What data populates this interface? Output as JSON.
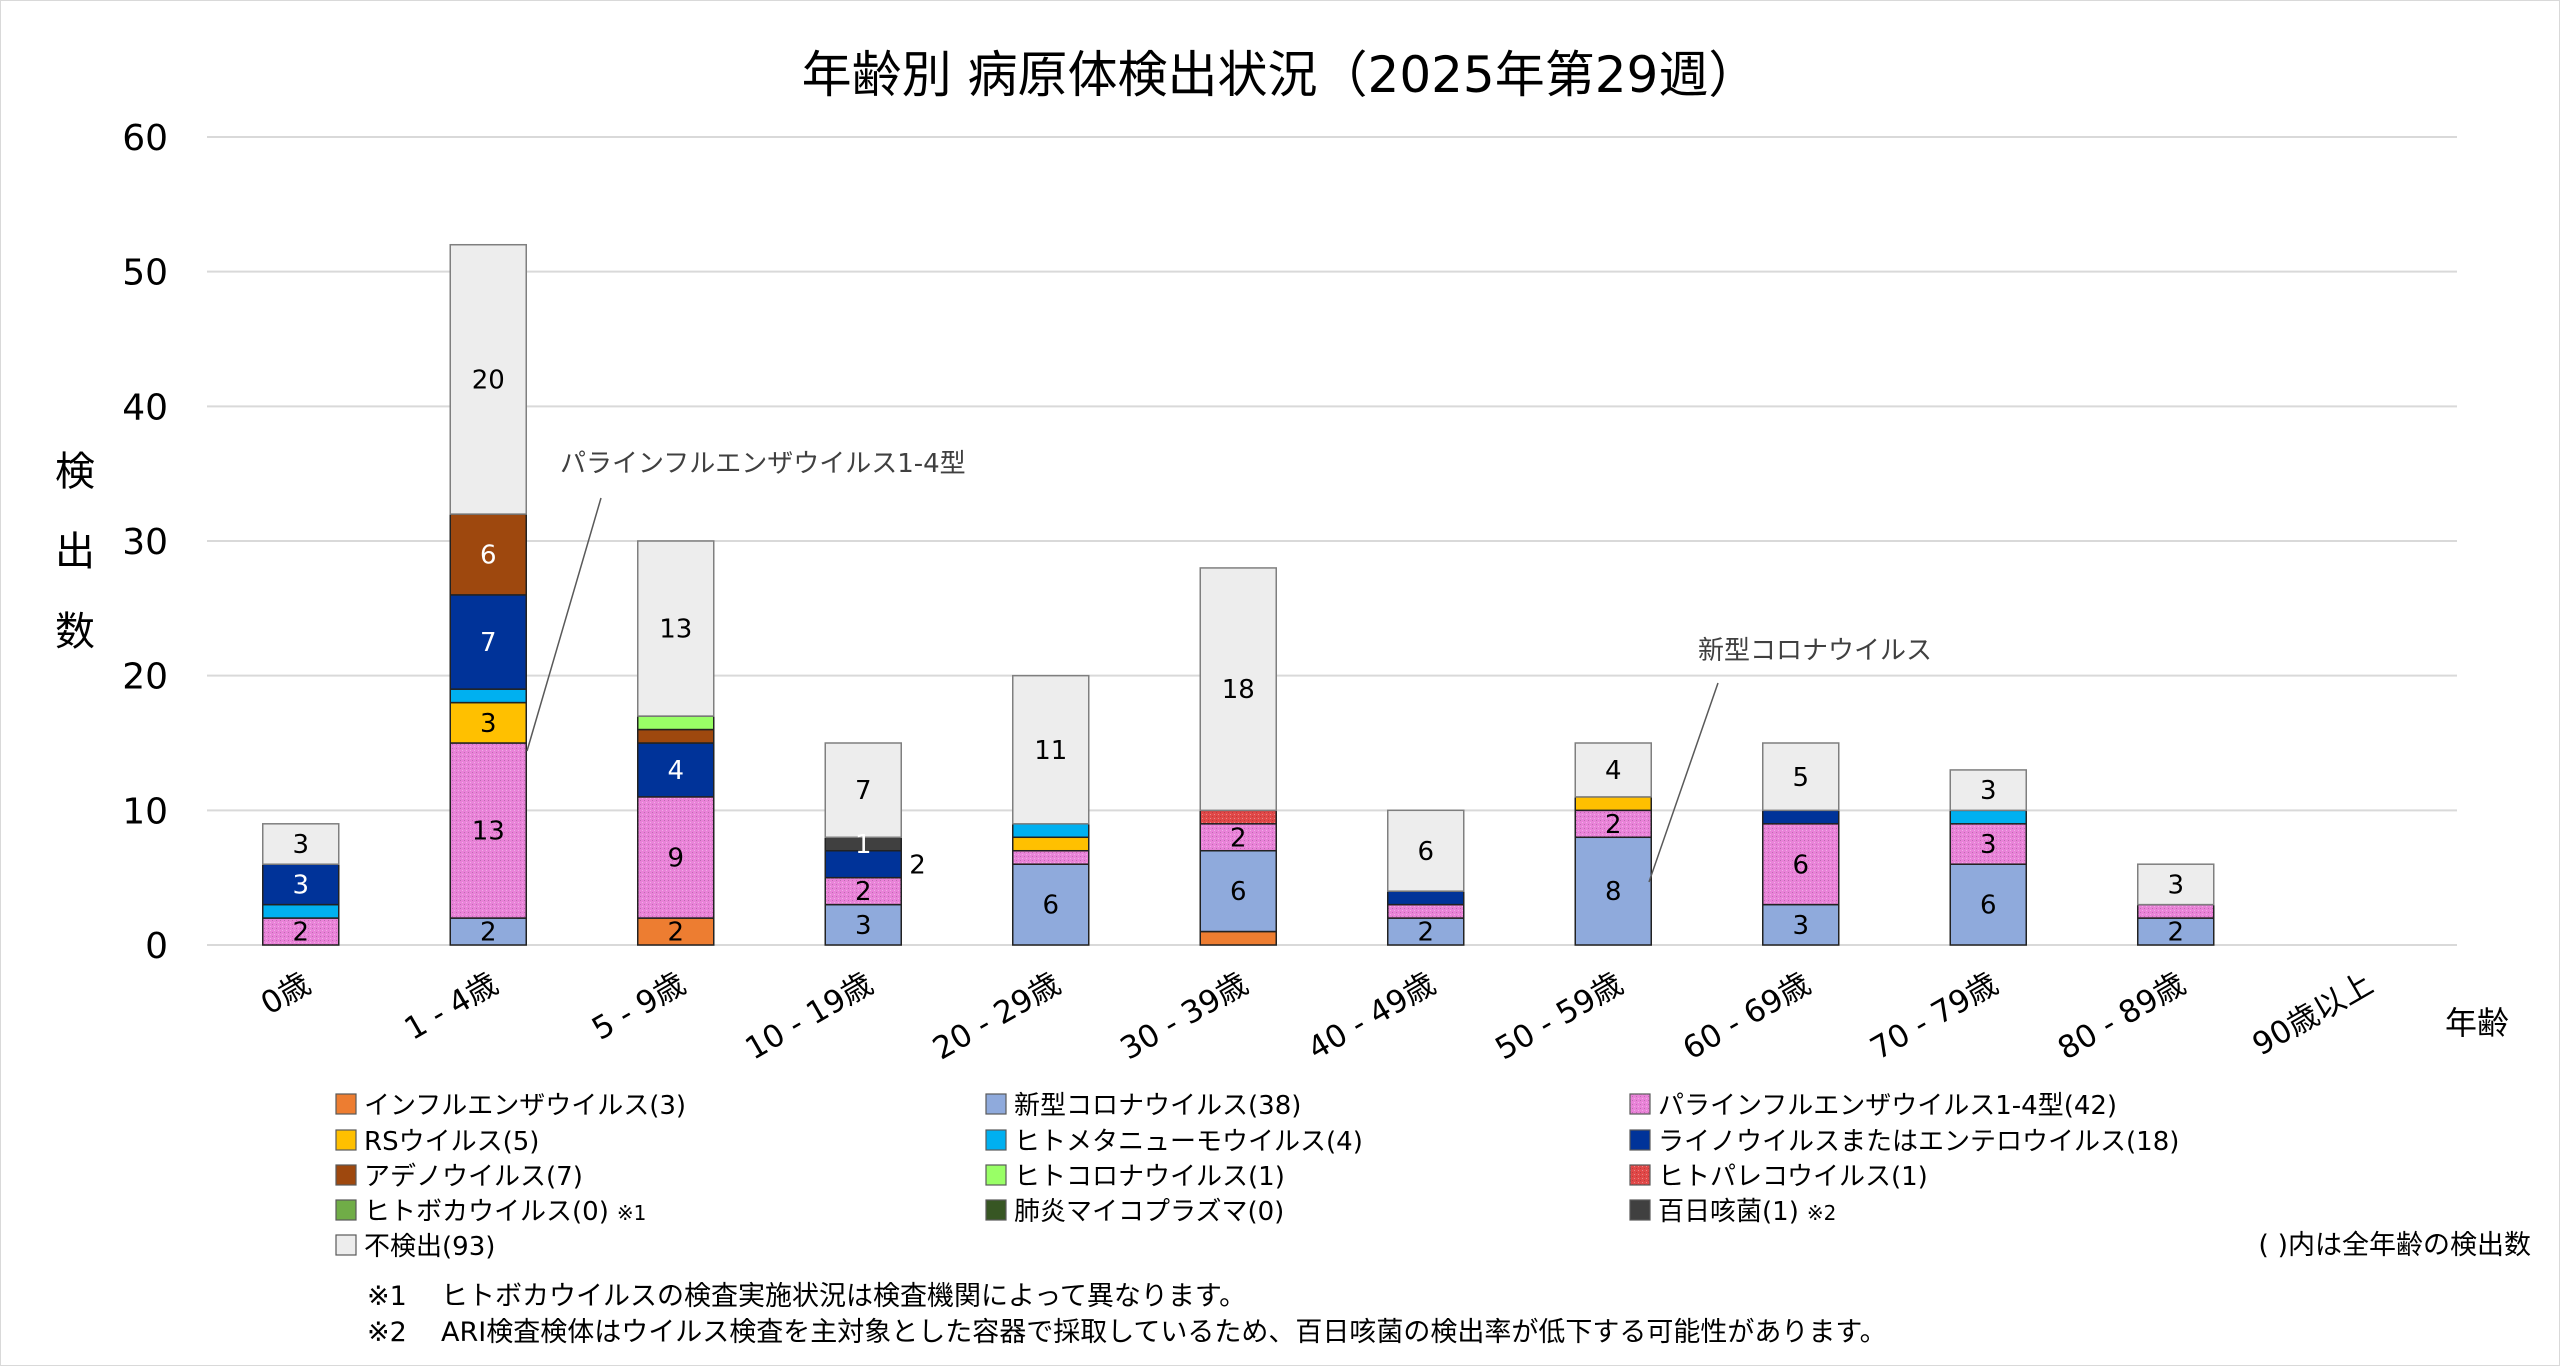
{
  "chart_data": {
    "type": "bar",
    "stacked": true,
    "title": "年齢別 病原体検出状況（2025年第29週）",
    "xlabel": "年齢",
    "ylabel": "検出数",
    "ylim": [
      0,
      60
    ],
    "yticks": [
      0,
      10,
      20,
      30,
      40,
      50,
      60
    ],
    "grid": true,
    "legend_placement": "bottom",
    "categories": [
      "0歳",
      "1 - 4歳",
      "5 - 9歳",
      "10 - 19歳",
      "20 - 29歳",
      "30 - 39歳",
      "40 - 49歳",
      "50 - 59歳",
      "60 - 69歳",
      "70 - 79歳",
      "80 - 89歳",
      "90歳以上"
    ],
    "series": [
      {
        "name": "インフルエンザウイルス",
        "total": "(3)",
        "color": "#ed7d31",
        "label_color": "#000000",
        "values": [
          0,
          0,
          2,
          0,
          0,
          1,
          0,
          0,
          0,
          0,
          0,
          0
        ]
      },
      {
        "name": "新型コロナウイルス",
        "total": "(38)",
        "color": "#8faadc",
        "label_color": "#000000",
        "values": [
          0,
          2,
          0,
          3,
          6,
          6,
          2,
          8,
          3,
          6,
          2,
          0
        ]
      },
      {
        "name": "パラインフルエンザウイルス1-4型",
        "total": "(42)",
        "color": "#e983d8",
        "pattern": true,
        "label_color": "#000000",
        "values": [
          2,
          13,
          9,
          2,
          1,
          2,
          1,
          2,
          6,
          3,
          1,
          0
        ]
      },
      {
        "name": "RSウイルス",
        "total": "(5)",
        "color": "#ffc000",
        "label_color": "#000000",
        "values": [
          0,
          3,
          0,
          0,
          1,
          0,
          0,
          1,
          0,
          0,
          0,
          0
        ]
      },
      {
        "name": "ヒトメタニューモウイルス",
        "total": "(4)",
        "color": "#00b0f0",
        "label_color": "#000000",
        "values": [
          1,
          1,
          0,
          0,
          1,
          0,
          0,
          0,
          0,
          1,
          0,
          0
        ]
      },
      {
        "name": "ライノウイルスまたはエンテロウイルス",
        "total": "(18)",
        "color": "#003399",
        "label_color": "#ffffff",
        "values": [
          3,
          7,
          4,
          2,
          0,
          0,
          1,
          0,
          1,
          0,
          0,
          0
        ]
      },
      {
        "name": "アデノウイルス",
        "total": "(7)",
        "color": "#9e480e",
        "label_color": "#ffffff",
        "values": [
          0,
          6,
          1,
          0,
          0,
          0,
          0,
          0,
          0,
          0,
          0,
          0
        ]
      },
      {
        "name": "ヒトコロナウイルス",
        "total": "(1)",
        "color": "#99ff66",
        "label_color": "#000000",
        "values": [
          0,
          0,
          1,
          0,
          0,
          0,
          0,
          0,
          0,
          0,
          0,
          0
        ]
      },
      {
        "name": "ヒトパレコウイルス",
        "total": "(1)",
        "color": "#e04848",
        "pattern": true,
        "label_color": "#000000",
        "values": [
          0,
          0,
          0,
          0,
          0,
          1,
          0,
          0,
          0,
          0,
          0,
          0
        ]
      },
      {
        "name": "ヒトボカウイルス",
        "total": "(0)",
        "note": "※1",
        "color": "#70ad47",
        "label_color": "#000000",
        "values": [
          0,
          0,
          0,
          0,
          0,
          0,
          0,
          0,
          0,
          0,
          0,
          0
        ]
      },
      {
        "name": "肺炎マイコプラズマ",
        "total": "(0)",
        "color": "#375623",
        "label_color": "#ffffff",
        "values": [
          0,
          0,
          0,
          0,
          0,
          0,
          0,
          0,
          0,
          0,
          0,
          0
        ]
      },
      {
        "name": "百日咳菌",
        "total": "(1)",
        "note": "※2",
        "color": "#404040",
        "label_color": "#ffffff",
        "always_label": true,
        "values": [
          0,
          0,
          0,
          1,
          0,
          0,
          0,
          0,
          0,
          0,
          0,
          0
        ]
      },
      {
        "name": "不検出",
        "total": "(93)",
        "color": "#ededed",
        "label_color": "#000000",
        "values": [
          3,
          20,
          13,
          7,
          11,
          18,
          6,
          4,
          5,
          3,
          3,
          0
        ]
      }
    ],
    "annotations": [
      {
        "text": "パラインフルエンザウイルス1-4型",
        "series": "パラインフルエンザウイルス1-4型",
        "category": "1 - 4歳"
      },
      {
        "text": "新型コロナウイルス",
        "series": "新型コロナウイルス",
        "category": "50 - 59歳"
      }
    ]
  },
  "legend_note": "( )内は全年齢の検出数",
  "footnotes": [
    {
      "mark": "※1",
      "text": "ヒトボカウイルスの検査実施状況は検査機関によって異なります。"
    },
    {
      "mark": "※2",
      "text": "ARI検査検体はウイルス検査を主対象とした容器で採取しているため、百日咳菌の検出率が低下する可能性があります。"
    }
  ]
}
